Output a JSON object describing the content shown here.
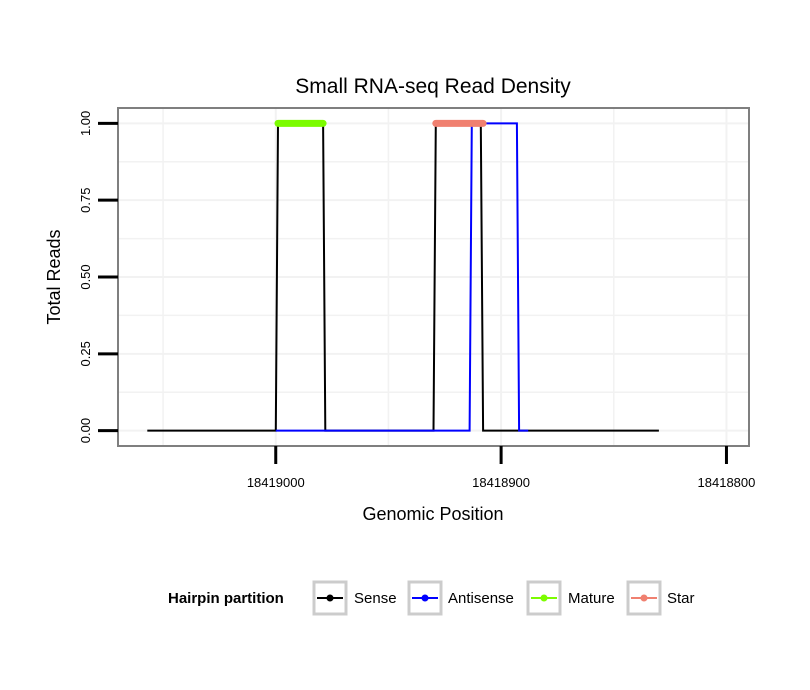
{
  "chart_data": {
    "type": "line",
    "title": "Small RNA-seq Read Density",
    "xlabel": "Genomic Position",
    "ylabel": "Total Reads",
    "x_reversed": true,
    "xlim": [
      18419070,
      18418790
    ],
    "ylim": [
      -0.05,
      1.05
    ],
    "x_ticks": [
      18419000,
      18418900,
      18418800
    ],
    "x_tick_labels": [
      "18419000",
      "18418900",
      "18418800"
    ],
    "y_ticks": [
      0,
      0.25,
      0.5,
      0.75,
      1
    ],
    "y_tick_labels": [
      "0.00",
      "0.25",
      "0.50",
      "0.75",
      "1.00"
    ],
    "grid": true,
    "legend": {
      "title": "Hairpin partition",
      "position": "bottom",
      "entries": [
        {
          "name": "Sense",
          "color": "#000000"
        },
        {
          "name": "Antisense",
          "color": "#0000ff"
        },
        {
          "name": "Mature",
          "color": "#7cfc00"
        },
        {
          "name": "Star",
          "color": "#f08070"
        }
      ]
    },
    "series": [
      {
        "name": "Sense",
        "color": "#000000",
        "x": [
          18419057,
          18419000,
          18418999,
          18418979,
          18418978,
          18418930,
          18418929,
          18418909,
          18418908,
          18418830
        ],
        "y": [
          0,
          0,
          1,
          1,
          0,
          0,
          1,
          1,
          0,
          0
        ]
      },
      {
        "name": "Antisense",
        "color": "#0000ff",
        "x": [
          18419000,
          18418914,
          18418913,
          18418893,
          18418892,
          18418888
        ],
        "y": [
          0,
          0,
          1,
          1,
          0,
          0
        ]
      },
      {
        "name": "Mature",
        "color": "#7cfc00",
        "x": [
          18418999,
          18418979
        ],
        "y": [
          1,
          1
        ]
      },
      {
        "name": "Star",
        "color": "#f08070",
        "x": [
          18418929,
          18418908
        ],
        "y": [
          1,
          1
        ]
      }
    ]
  }
}
